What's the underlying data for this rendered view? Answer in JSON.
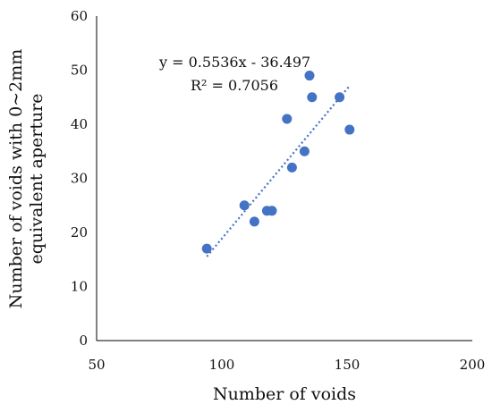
{
  "chart_data": {
    "type": "scatter",
    "xlabel": "Number of voids",
    "ylabel_lines": [
      "Number of voids  with  0~2mm",
      "equivalent aperture"
    ],
    "xlim": [
      50,
      200
    ],
    "ylim": [
      0,
      60
    ],
    "x_ticks": [
      50,
      100,
      150,
      200
    ],
    "y_ticks": [
      0,
      10,
      20,
      30,
      40,
      50,
      60
    ],
    "grid": false,
    "points": [
      {
        "x": 94,
        "y": 17
      },
      {
        "x": 109,
        "y": 25
      },
      {
        "x": 113,
        "y": 22
      },
      {
        "x": 118,
        "y": 24
      },
      {
        "x": 120,
        "y": 24
      },
      {
        "x": 126,
        "y": 41
      },
      {
        "x": 128,
        "y": 32
      },
      {
        "x": 133,
        "y": 35
      },
      {
        "x": 135,
        "y": 49
      },
      {
        "x": 136,
        "y": 45
      },
      {
        "x": 147,
        "y": 45
      },
      {
        "x": 151,
        "y": 39
      }
    ],
    "trendline": {
      "type": "linear",
      "slope": 0.5536,
      "intercept": -36.497,
      "x_range": [
        94,
        151
      ],
      "equation_label": "y = 0.5536x - 36.497",
      "r2_label": "R² = 0.7056"
    },
    "colors": {
      "marker": "#4472C4",
      "trendline": "#4472C4",
      "axis": "#000000"
    }
  }
}
